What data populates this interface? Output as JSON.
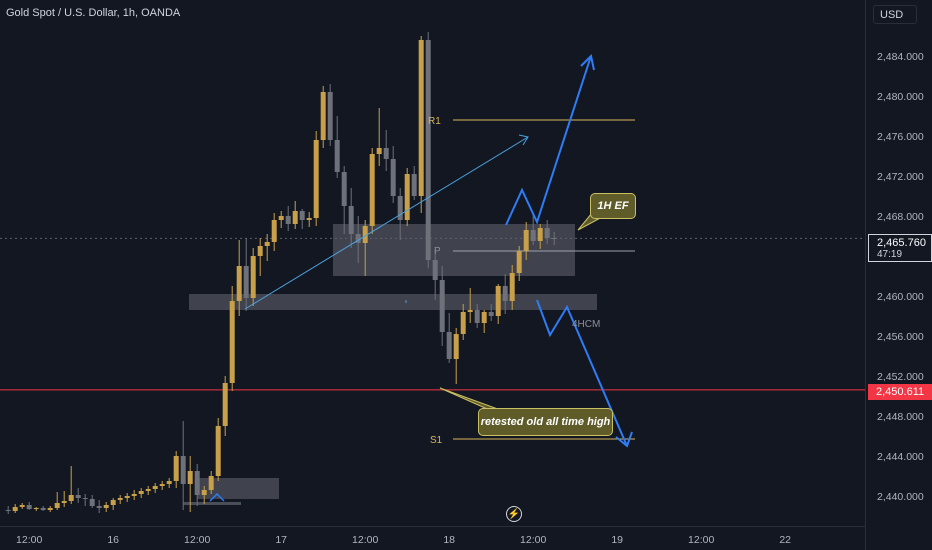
{
  "header": {
    "title": "Gold Spot / U.S. Dollar, 1h, OANDA",
    "currency": "USD"
  },
  "price_axis": {
    "current_price": "2,465.760",
    "countdown": "47:19",
    "marked_level": "2,450.611"
  },
  "colors": {
    "background": "#131722",
    "bull_candle": "#c8a04a",
    "bear_candle": "#6e717a",
    "level_lines": "#d9b45a",
    "marked_level": "#f23645",
    "projection_arrows": "#2e7cf6",
    "trend_line": "#4aa3df",
    "zone_fill": "#787b86"
  },
  "annotations": {
    "r1": "R1",
    "s1": "S1",
    "pivot": "P",
    "note_ef": "1H EF",
    "note_retest": "retested old all time high",
    "zone_4h": "4HCM"
  },
  "indicator_icon": "lightning-icon",
  "chart_data": {
    "type": "candlestick",
    "title": "Gold Spot / U.S. Dollar, 1h, OANDA",
    "y_unit": "USD",
    "ylim": [
      2436.5,
      2491.0
    ],
    "y_ticks": [
      "2,440.000",
      "2,444.000",
      "2,448.000",
      "2,452.000",
      "2,456.000",
      "2,460.000",
      "2,464.000",
      "2,468.000",
      "2,472.000",
      "2,476.000",
      "2,480.000",
      "2,484.000"
    ],
    "y_tick_values": [
      2440,
      2444,
      2448,
      2452,
      2456,
      2460,
      2464,
      2468,
      2472,
      2476,
      2480,
      2484
    ],
    "x_ticks": [
      "12:00",
      "16",
      "12:00",
      "17",
      "12:00",
      "18",
      "12:00",
      "19",
      "12:00",
      "22"
    ],
    "x_tick_index": [
      3,
      15,
      27,
      39,
      51,
      63,
      75,
      87,
      99,
      111
    ],
    "grid": false,
    "levels": {
      "R1": 2477.6,
      "P": 2464.5,
      "S1": 2445.7,
      "marked": 2450.611,
      "current": 2465.76
    },
    "candles": [
      [
        2438.6,
        2439.0,
        2438.2,
        2438.5
      ],
      [
        2438.5,
        2439.2,
        2438.3,
        2438.9
      ],
      [
        2438.9,
        2439.3,
        2438.7,
        2439.1
      ],
      [
        2439.1,
        2439.4,
        2438.6,
        2438.7
      ],
      [
        2438.7,
        2438.9,
        2438.5,
        2438.8
      ],
      [
        2438.8,
        2439.0,
        2438.5,
        2438.6
      ],
      [
        2438.6,
        2439.0,
        2438.4,
        2438.8
      ],
      [
        2438.8,
        2440.4,
        2438.6,
        2439.3
      ],
      [
        2439.3,
        2440.5,
        2438.9,
        2439.5
      ],
      [
        2439.5,
        2443.0,
        2439.2,
        2440.1
      ],
      [
        2440.1,
        2440.8,
        2439.3,
        2439.8
      ],
      [
        2439.8,
        2440.2,
        2439.0,
        2439.7
      ],
      [
        2439.7,
        2440.1,
        2438.8,
        2439.0
      ],
      [
        2439.0,
        2439.6,
        2438.3,
        2438.8
      ],
      [
        2438.8,
        2439.4,
        2438.4,
        2439.1
      ],
      [
        2439.1,
        2439.8,
        2438.6,
        2439.6
      ],
      [
        2439.6,
        2440.1,
        2439.2,
        2439.8
      ],
      [
        2439.8,
        2440.3,
        2439.4,
        2440.0
      ],
      [
        2440.0,
        2440.6,
        2439.6,
        2440.2
      ],
      [
        2440.2,
        2440.8,
        2439.8,
        2440.5
      ],
      [
        2440.5,
        2441.0,
        2440.1,
        2440.7
      ],
      [
        2440.7,
        2441.3,
        2440.3,
        2441.0
      ],
      [
        2441.0,
        2441.5,
        2440.6,
        2441.2
      ],
      [
        2441.2,
        2441.8,
        2440.8,
        2441.5
      ],
      [
        2441.5,
        2444.5,
        2440.8,
        2444.0
      ],
      [
        2444.0,
        2447.5,
        2438.6,
        2441.2
      ],
      [
        2441.2,
        2444.0,
        2438.4,
        2442.5
      ],
      [
        2442.5,
        2443.2,
        2439.0,
        2440.1
      ],
      [
        2440.1,
        2441.0,
        2439.2,
        2440.6
      ],
      [
        2440.6,
        2442.5,
        2440.2,
        2442.0
      ],
      [
        2442.0,
        2447.8,
        2441.5,
        2447.0
      ],
      [
        2447.0,
        2452.0,
        2446.0,
        2451.3
      ],
      [
        2451.3,
        2461.0,
        2450.5,
        2459.5
      ],
      [
        2459.5,
        2465.6,
        2458.0,
        2463.0
      ],
      [
        2463.0,
        2465.8,
        2458.5,
        2459.8
      ],
      [
        2459.8,
        2464.8,
        2459.0,
        2464.0
      ],
      [
        2464.0,
        2465.8,
        2462.0,
        2465.0
      ],
      [
        2465.0,
        2466.2,
        2463.5,
        2465.4
      ],
      [
        2465.4,
        2468.3,
        2464.5,
        2467.6
      ],
      [
        2467.6,
        2468.5,
        2466.8,
        2468.0
      ],
      [
        2468.0,
        2469.0,
        2466.5,
        2467.2
      ],
      [
        2467.2,
        2469.5,
        2466.7,
        2468.5
      ],
      [
        2468.5,
        2468.7,
        2466.7,
        2467.6
      ],
      [
        2467.6,
        2468.4,
        2466.9,
        2467.8
      ],
      [
        2467.8,
        2476.5,
        2467.0,
        2475.6
      ],
      [
        2475.6,
        2481.0,
        2474.8,
        2480.4
      ],
      [
        2480.4,
        2481.2,
        2475.0,
        2475.6
      ],
      [
        2475.6,
        2478.0,
        2471.8,
        2472.4
      ],
      [
        2472.4,
        2473.0,
        2466.2,
        2469.0
      ],
      [
        2469.0,
        2470.8,
        2464.8,
        2466.2
      ],
      [
        2466.2,
        2468.0,
        2463.3,
        2465.3
      ],
      [
        2465.3,
        2467.6,
        2462.0,
        2467.0
      ],
      [
        2467.0,
        2474.8,
        2466.2,
        2474.2
      ],
      [
        2474.2,
        2478.8,
        2473.0,
        2474.8
      ],
      [
        2474.8,
        2476.6,
        2472.5,
        2473.7
      ],
      [
        2473.7,
        2475.0,
        2469.3,
        2470.0
      ],
      [
        2470.0,
        2470.8,
        2465.6,
        2467.6
      ],
      [
        2467.6,
        2472.8,
        2467.0,
        2472.2
      ],
      [
        2472.2,
        2473.0,
        2469.6,
        2470.0
      ],
      [
        2470.0,
        2486.0,
        2468.3,
        2485.6
      ],
      [
        2485.6,
        2486.4,
        2462.8,
        2463.6
      ],
      [
        2463.6,
        2464.6,
        2459.6,
        2461.6
      ],
      [
        2461.6,
        2463.0,
        2455.0,
        2456.4
      ],
      [
        2456.4,
        2458.3,
        2453.3,
        2453.7
      ],
      [
        2453.7,
        2456.8,
        2451.2,
        2456.2
      ],
      [
        2456.2,
        2459.2,
        2455.6,
        2458.4
      ],
      [
        2458.4,
        2460.8,
        2457.3,
        2458.6
      ],
      [
        2458.6,
        2459.2,
        2456.8,
        2457.3
      ],
      [
        2457.3,
        2458.6,
        2456.3,
        2458.4
      ],
      [
        2458.4,
        2459.2,
        2457.5,
        2458.0
      ],
      [
        2458.0,
        2461.2,
        2457.2,
        2461.0
      ],
      [
        2461.0,
        2462.2,
        2458.2,
        2459.5
      ],
      [
        2459.5,
        2463.1,
        2458.6,
        2462.3
      ],
      [
        2462.3,
        2465.0,
        2461.5,
        2464.5
      ],
      [
        2464.5,
        2467.4,
        2463.6,
        2466.6
      ],
      [
        2466.6,
        2468.2,
        2465.1,
        2465.5
      ],
      [
        2465.5,
        2467.2,
        2464.7,
        2466.8
      ],
      [
        2466.8,
        2467.6,
        2465.2,
        2465.8
      ],
      [
        2465.8,
        2466.4,
        2465.1,
        2465.7
      ]
    ]
  }
}
